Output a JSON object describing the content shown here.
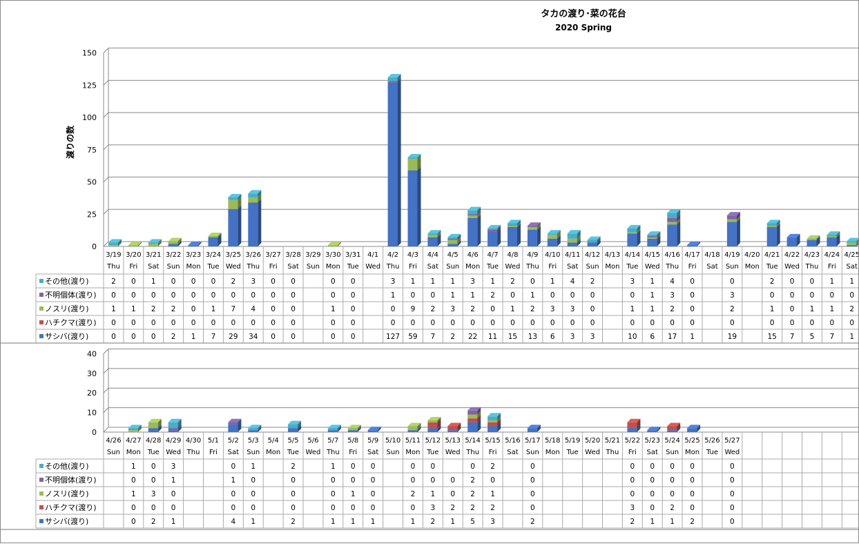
{
  "colors": {
    "sashiba": "#4472c4",
    "hachikuma": "#c0504d",
    "nosuri": "#9bbb59",
    "fumei": "#8064a2",
    "sonota": "#4bacc6"
  },
  "chart_data": [
    {
      "type": "bar",
      "stacked": true,
      "title": "タカの渡り･菜の花台",
      "subtitle": "2020 Spring",
      "ylabel": "渡りの数",
      "ylim": [
        0,
        150
      ],
      "yticks": [
        "0",
        "25",
        "50",
        "75",
        "100",
        "125",
        "150"
      ],
      "categories": [
        "3/19",
        "3/20",
        "3/21",
        "3/22",
        "3/23",
        "3/24",
        "3/25",
        "3/26",
        "3/27",
        "3/28",
        "3/29",
        "3/30",
        "3/31",
        "4/1",
        "4/2",
        "4/3",
        "4/4",
        "4/5",
        "4/6",
        "4/7",
        "4/8",
        "4/9",
        "4/10",
        "4/11",
        "4/12",
        "4/13",
        "4/14",
        "4/15",
        "4/16",
        "4/17",
        "4/18",
        "4/19",
        "4/20",
        "4/21",
        "4/22",
        "4/23",
        "4/24",
        "4/25"
      ],
      "weekdays": [
        "Thu",
        "Fri",
        "Sat",
        "Sun",
        "Mon",
        "Tue",
        "Wed",
        "Thu",
        "Fri",
        "Sat",
        "Sun",
        "Mon",
        "Tue",
        "Wed",
        "Thu",
        "Fri",
        "Sat",
        "Sun",
        "Mon",
        "Tue",
        "Wed",
        "Thu",
        "Fri",
        "Sat",
        "Sun",
        "Mon",
        "Tue",
        "Wed",
        "Thu",
        "Fri",
        "Sat",
        "Sun",
        "Mon",
        "Tue",
        "Wed",
        "Thu",
        "Fri",
        "Sat"
      ],
      "series": [
        {
          "name": "その他(渡り)",
          "color": "#4bacc6",
          "values": [
            "2",
            "0",
            "1",
            "0",
            "0",
            "0",
            "2",
            "3",
            "0",
            "0",
            "",
            "0",
            "0",
            "",
            "3",
            "1",
            "1",
            "1",
            "3",
            "1",
            "2",
            "0",
            "1",
            "4",
            "2",
            "",
            "3",
            "1",
            "4",
            "0",
            "",
            "0",
            "",
            "2",
            "0",
            "0",
            "1",
            "1"
          ]
        },
        {
          "name": "不明個体(渡り)",
          "color": "#8064a2",
          "values": [
            "0",
            "0",
            "0",
            "0",
            "0",
            "0",
            "0",
            "0",
            "0",
            "0",
            "",
            "0",
            "0",
            "",
            "1",
            "0",
            "0",
            "1",
            "1",
            "2",
            "0",
            "1",
            "0",
            "0",
            "0",
            "",
            "0",
            "1",
            "3",
            "0",
            "",
            "3",
            "",
            "0",
            "0",
            "0",
            "0",
            "0"
          ]
        },
        {
          "name": "ノスリ(渡り)",
          "color": "#9bbb59",
          "values": [
            "1",
            "1",
            "2",
            "2",
            "0",
            "1",
            "7",
            "4",
            "0",
            "0",
            "",
            "1",
            "0",
            "",
            "0",
            "9",
            "2",
            "3",
            "2",
            "0",
            "1",
            "2",
            "3",
            "3",
            "0",
            "",
            "1",
            "1",
            "2",
            "0",
            "",
            "2",
            "",
            "1",
            "0",
            "1",
            "1",
            "2"
          ]
        },
        {
          "name": "ハチクマ(渡り)",
          "color": "#c0504d",
          "values": [
            "0",
            "0",
            "0",
            "0",
            "0",
            "0",
            "0",
            "0",
            "0",
            "0",
            "",
            "0",
            "0",
            "",
            "0",
            "0",
            "0",
            "0",
            "0",
            "0",
            "0",
            "0",
            "0",
            "0",
            "0",
            "",
            "0",
            "0",
            "0",
            "0",
            "",
            "0",
            "",
            "0",
            "0",
            "0",
            "0",
            "0"
          ]
        },
        {
          "name": "サシバ(渡り)",
          "color": "#4472c4",
          "values": [
            "0",
            "0",
            "0",
            "2",
            "1",
            "7",
            "29",
            "34",
            "0",
            "0",
            "",
            "0",
            "0",
            "",
            "127",
            "59",
            "7",
            "2",
            "22",
            "11",
            "15",
            "13",
            "6",
            "3",
            "3",
            "",
            "10",
            "6",
            "17",
            "1",
            "",
            "19",
            "",
            "15",
            "7",
            "5",
            "7",
            "1"
          ]
        }
      ]
    },
    {
      "type": "bar",
      "stacked": true,
      "ylim": [
        0,
        40
      ],
      "yticks": [
        "0",
        "10",
        "20",
        "30",
        "40"
      ],
      "categories": [
        "4/26",
        "4/27",
        "4/28",
        "4/29",
        "4/30",
        "5/1",
        "5/2",
        "5/3",
        "5/4",
        "5/5",
        "5/6",
        "5/7",
        "5/8",
        "5/9",
        "5/10",
        "5/11",
        "5/12",
        "5/13",
        "5/14",
        "5/15",
        "5/16",
        "5/17",
        "5/18",
        "5/19",
        "5/20",
        "5/21",
        "5/22",
        "5/23",
        "5/24",
        "5/25",
        "5/26",
        "5/27",
        "",
        "",
        "",
        "",
        "",
        ""
      ],
      "weekdays": [
        "Sun",
        "Mon",
        "Tue",
        "Wed",
        "Thu",
        "Fri",
        "Sat",
        "Sun",
        "Mon",
        "Tue",
        "Wed",
        "Thu",
        "Fri",
        "Sat",
        "Sun",
        "Mon",
        "Tue",
        "Wed",
        "Thu",
        "Fri",
        "Sat",
        "Sun",
        "Mon",
        "Tue",
        "Wed",
        "Thu",
        "Fri",
        "Sat",
        "Sun",
        "Mon",
        "Tue",
        "Wed",
        "",
        "",
        "",
        "",
        "",
        ""
      ],
      "series": [
        {
          "name": "その他(渡り)",
          "color": "#4bacc6",
          "values": [
            "",
            "1",
            "0",
            "3",
            "",
            "",
            "0",
            "1",
            "",
            "2",
            "",
            "1",
            "0",
            "0",
            "",
            "0",
            "0",
            "",
            "0",
            "2",
            "",
            "0",
            "",
            "",
            "",
            "",
            "0",
            "0",
            "0",
            "0",
            "",
            "0",
            "",
            "",
            "",
            "",
            "",
            ""
          ]
        },
        {
          "name": "不明個体(渡り)",
          "color": "#8064a2",
          "values": [
            "",
            "0",
            "0",
            "1",
            "",
            "",
            "1",
            "0",
            "",
            "0",
            "",
            "0",
            "0",
            "0",
            "",
            "0",
            "0",
            "0",
            "2",
            "0",
            "",
            "0",
            "",
            "",
            "",
            "",
            "0",
            "0",
            "0",
            "0",
            "",
            "0",
            "",
            "",
            "",
            "",
            "",
            ""
          ]
        },
        {
          "name": "ノスリ(渡り)",
          "color": "#9bbb59",
          "values": [
            "",
            "1",
            "3",
            "0",
            "",
            "",
            "0",
            "0",
            "",
            "0",
            "",
            "0",
            "1",
            "0",
            "",
            "2",
            "1",
            "0",
            "2",
            "1",
            "",
            "0",
            "",
            "",
            "",
            "",
            "0",
            "0",
            "0",
            "0",
            "",
            "0",
            "",
            "",
            "",
            "",
            "",
            ""
          ]
        },
        {
          "name": "ハチクマ(渡り)",
          "color": "#c0504d",
          "values": [
            "",
            "0",
            "0",
            "0",
            "",
            "",
            "0",
            "0",
            "",
            "0",
            "",
            "0",
            "0",
            "0",
            "",
            "0",
            "3",
            "2",
            "2",
            "2",
            "",
            "0",
            "",
            "",
            "",
            "",
            "3",
            "0",
            "2",
            "0",
            "",
            "0",
            "",
            "",
            "",
            "",
            "",
            ""
          ]
        },
        {
          "name": "サシバ(渡り)",
          "color": "#4472c4",
          "values": [
            "",
            "0",
            "2",
            "1",
            "",
            "",
            "4",
            "1",
            "",
            "2",
            "",
            "1",
            "1",
            "1",
            "",
            "1",
            "2",
            "1",
            "5",
            "3",
            "",
            "2",
            "",
            "",
            "",
            "",
            "2",
            "1",
            "1",
            "2",
            "",
            "0",
            "",
            "",
            "",
            "",
            "",
            ""
          ]
        }
      ]
    }
  ]
}
